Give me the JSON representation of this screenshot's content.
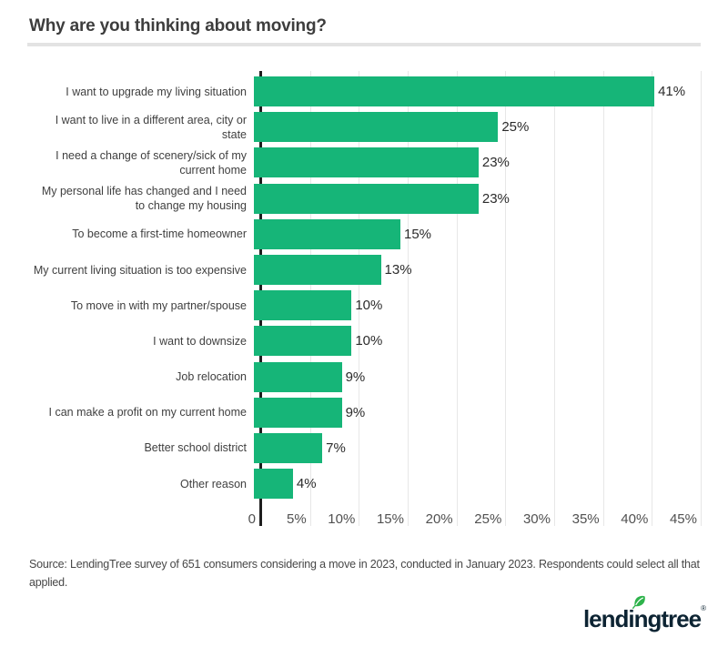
{
  "chart_data": {
    "type": "bar",
    "orientation": "horizontal",
    "title": "Why are you thinking about moving?",
    "categories": [
      "I want to upgrade my living situation",
      "I want to live in a different area, city or state",
      "I need a change of scenery/sick of my current home",
      "My personal life has changed and I need to change my housing",
      "To become a first-time homeowner",
      "My current living situation is too expensive",
      "To move in with my partner/spouse",
      "I want to downsize",
      "Job relocation",
      "I can make a profit on my current home",
      "Better school district",
      "Other reason"
    ],
    "values": [
      41,
      25,
      23,
      23,
      15,
      13,
      10,
      10,
      9,
      9,
      7,
      4
    ],
    "value_labels": [
      "41%",
      "25%",
      "23%",
      "23%",
      "15%",
      "13%",
      "10%",
      "10%",
      "9%",
      "9%",
      "7%",
      "4%"
    ],
    "xlabel": "",
    "ylabel": "",
    "xlim": [
      0,
      45
    ],
    "x_ticks": [
      "0",
      "5%",
      "10%",
      "15%",
      "20%",
      "25%",
      "30%",
      "35%",
      "40%",
      "45%"
    ],
    "tick_step_percent": 5,
    "grid": "vertical-only",
    "legend": "none",
    "bar_color": "#16b578"
  },
  "source": {
    "text": "Source: LendingTree survey of 651 consumers considering a move in 2023, conducted in January 2023. Respondents could select all that applied."
  },
  "logo": {
    "text": "lendingtree",
    "trademark": "®",
    "leaf_icon": "leaf",
    "leaf_color": "#2eb34b",
    "text_color": "#0d2433"
  },
  "colors": {
    "bar": "#16b578",
    "axis": "#1e1e1e",
    "gridline": "#e7e7e7",
    "title": "#3d3d3d",
    "divider": "#e3e3e3",
    "label": "#3f3f3f",
    "value": "#2b2b2b",
    "tick": "#505050",
    "source": "#474747",
    "logo_text": "#0d2433",
    "leaf": "#2eb34b"
  }
}
